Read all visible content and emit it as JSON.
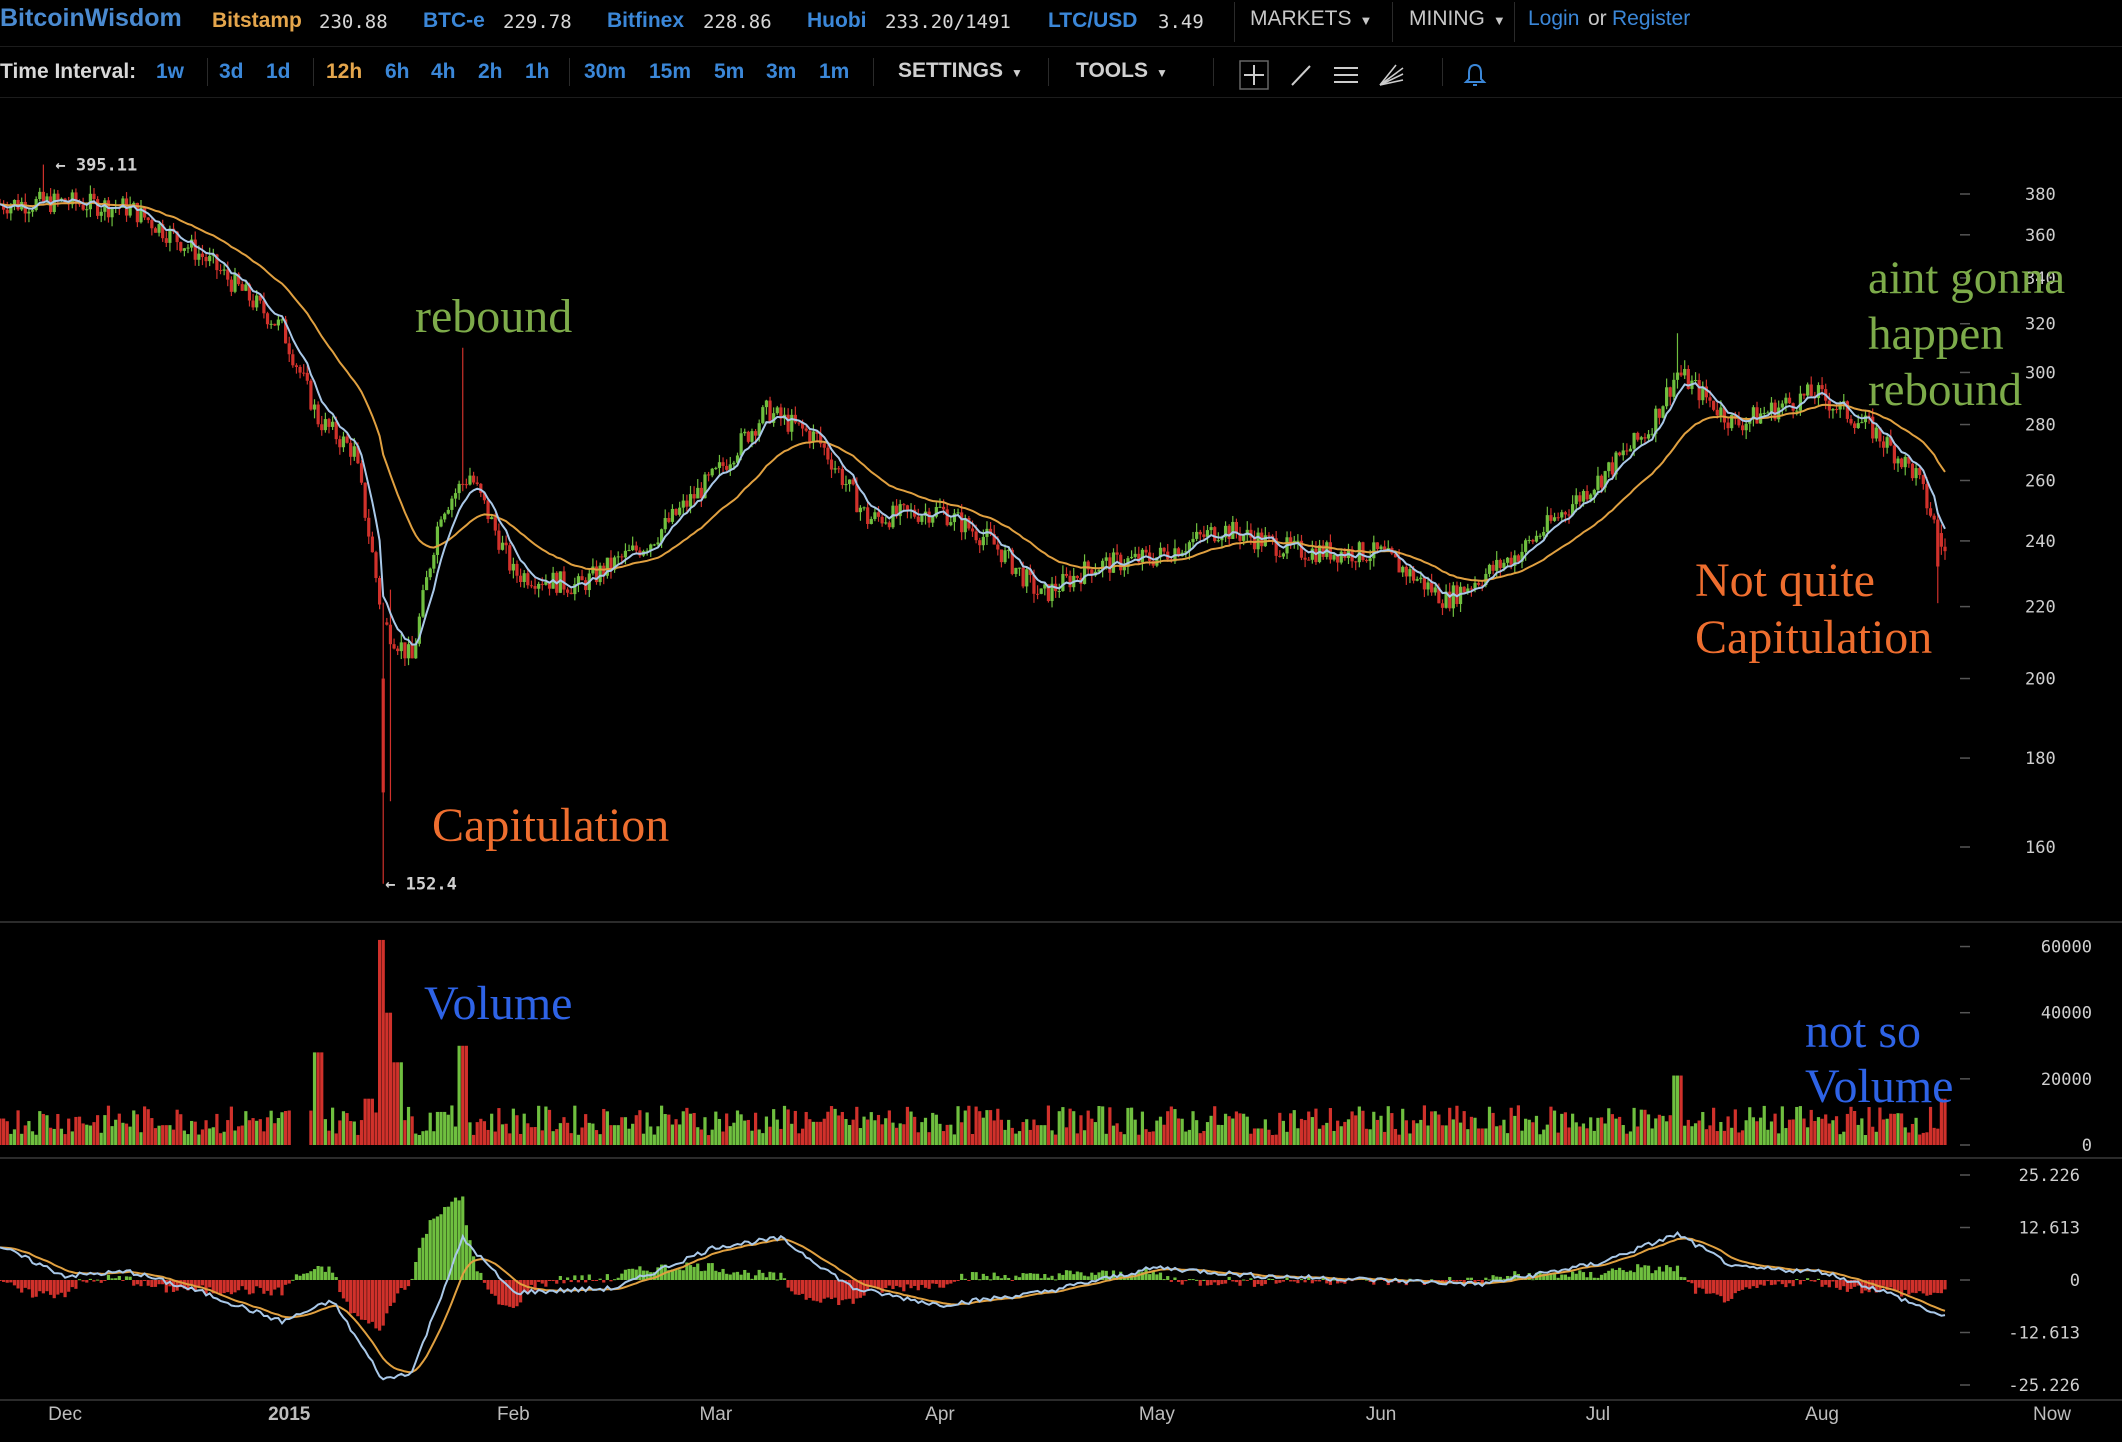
{
  "header": {
    "brand": "BitcoinWisdom",
    "tickers": [
      {
        "name": "Bitstamp",
        "price": "230.88"
      },
      {
        "name": "BTC-e",
        "price": "229.78"
      },
      {
        "name": "Bitfinex",
        "price": "228.86"
      },
      {
        "name": "Huobi",
        "price": "233.20/1491"
      },
      {
        "name": "LTC/USD",
        "price": "3.49"
      }
    ],
    "menus": {
      "markets": "MARKETS",
      "mining": "MINING"
    },
    "login": "Login",
    "or": "or",
    "register": "Register"
  },
  "toolbar": {
    "time_interval_label": "Time Interval:",
    "intervals": [
      "1w",
      "3d",
      "1d",
      "12h",
      "6h",
      "4h",
      "2h",
      "1h",
      "30m",
      "15m",
      "5m",
      "3m",
      "1m"
    ],
    "active_interval": "12h",
    "settings": "SETTINGS",
    "tools": "TOOLS",
    "icons": [
      "crosshair-icon",
      "trend-line-icon",
      "horizontal-lines-icon",
      "fan-icon",
      "bell-icon"
    ]
  },
  "annotations": {
    "rebound": "rebound",
    "aint_gonna_1": "aint gonna",
    "aint_gonna_2": "happen",
    "aint_gonna_3": "rebound",
    "capitulation": "Capitulation",
    "not_quite_1": "Not quite",
    "not_quite_2": "Capitulation",
    "volume": "Volume",
    "not_so_1": "not so",
    "not_so_2": "Volume"
  },
  "colors": {
    "background": "#000000",
    "up_candle": "#6fbf3f",
    "down_candle": "#d0312b",
    "ema_fast": "#a9c8e8",
    "ema_slow": "#e0a040",
    "accent_blue": "#3b87d8",
    "accent_orange": "#e5a64c"
  },
  "chart_data": [
    {
      "type": "candlestick",
      "title": "",
      "x_labels": [
        "Dec",
        "2015",
        "Feb",
        "Mar",
        "Apr",
        "May",
        "Jun",
        "Jul",
        "Aug",
        "Now"
      ],
      "y_ticks": [
        380,
        360,
        340,
        320,
        300,
        280,
        260,
        240,
        220,
        200,
        180,
        160
      ],
      "y_scale": "log",
      "ylim": [
        150,
        400
      ],
      "high_marker": "395.11",
      "low_marker": "152.4",
      "series": [
        {
          "name": "price",
          "x": [
            "Nov 22",
            "Dec 1",
            "Dec 10",
            "Dec 20",
            "Dec 31",
            "Jan 5",
            "Jan 10",
            "Jan 14",
            "Jan 18",
            "Jan 22",
            "Jan 26",
            "Feb 1",
            "Feb 10",
            "Feb 20",
            "Mar 1",
            "Mar 8",
            "Mar 15",
            "Mar 22",
            "Apr 1",
            "Apr 8",
            "Apr 15",
            "Apr 22",
            "May 1",
            "May 10",
            "May 20",
            "Jun 1",
            "Jun 10",
            "Jun 20",
            "Jul 1",
            "Jul 8",
            "Jul 12",
            "Jul 20",
            "Jul 31",
            "Aug 8",
            "Aug 14",
            "Aug 18"
          ],
          "y": [
            375,
            376,
            373,
            350,
            318,
            282,
            270,
            215,
            205,
            250,
            262,
            230,
            226,
            240,
            262,
            285,
            275,
            247,
            250,
            240,
            223,
            232,
            235,
            244,
            237,
            236,
            222,
            236,
            260,
            278,
            300,
            280,
            292,
            278,
            262,
            236
          ]
        }
      ]
    },
    {
      "type": "bar",
      "title": "",
      "y_ticks": [
        "60000",
        "40000",
        "20000",
        "0"
      ],
      "ylim": [
        0,
        65000
      ],
      "series": [
        {
          "name": "volume",
          "x": [
            "Nov 22",
            "Dec 15",
            "Jan 5",
            "Jan 12",
            "Jan 14",
            "Jan 15",
            "Jan 16",
            "Jan 22",
            "Jan 25",
            "Feb 15",
            "Mar 15",
            "Apr 15",
            "May 15",
            "Jun 15",
            "Jul 12",
            "Aug 18"
          ],
          "y": [
            8000,
            6000,
            28000,
            14000,
            62000,
            40000,
            25000,
            10000,
            30000,
            6000,
            7000,
            6000,
            5000,
            5000,
            21000,
            14000
          ]
        }
      ]
    },
    {
      "type": "line",
      "title": "",
      "y_ticks": [
        "25.226",
        "12.613",
        "0",
        "-12.613",
        "-25.226"
      ],
      "ylim": [
        -25.226,
        25.226
      ],
      "series": [
        {
          "name": "macd",
          "x": [
            "Nov 22",
            "Dec 1",
            "Dec 10",
            "Dec 20",
            "Dec 31",
            "Jan 7",
            "Jan 14",
            "Jan 18",
            "Jan 25",
            "Feb 1",
            "Feb 15",
            "Mar 1",
            "Mar 10",
            "Mar 20",
            "Apr 1",
            "Apr 15",
            "May 1",
            "May 15",
            "Jun 1",
            "Jun 15",
            "Jul 1",
            "Jul 12",
            "Jul 20",
            "Aug 1",
            "Aug 10",
            "Aug 18"
          ],
          "y": [
            8,
            1,
            2,
            -3,
            -10,
            -5,
            -24,
            -22,
            10,
            -3,
            -2,
            8,
            10,
            -2,
            -6,
            -3,
            3,
            1,
            0,
            -1,
            4,
            11,
            3,
            2,
            -3,
            -9
          ]
        }
      ]
    }
  ]
}
